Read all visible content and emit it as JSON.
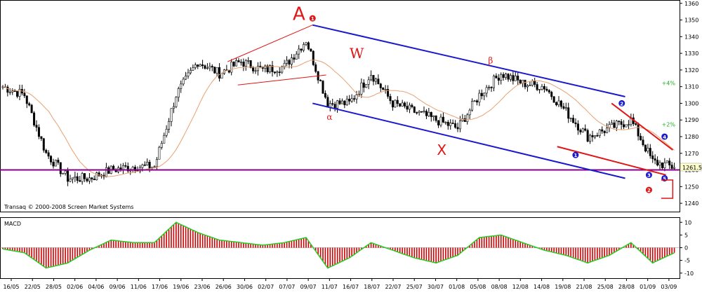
{
  "chart_data": [
    {
      "type": "line",
      "subtype": "candlestick-price",
      "ylim": [
        1235,
        1362
      ],
      "y_ticks": [
        1240,
        1250,
        1260,
        1270,
        1280,
        1290,
        1300,
        1310,
        1320,
        1330,
        1340,
        1350,
        1360
      ],
      "last_price_label": "1261.5",
      "support_level": 1260,
      "dates": [
        "16/05",
        "22/05",
        "28/05",
        "02/06",
        "04/06",
        "09/06",
        "11/06",
        "17/06",
        "19/06",
        "23/06",
        "26/06",
        "30/06",
        "02/07",
        "07/07",
        "09/07",
        "11/07",
        "16/07",
        "18/07",
        "22/07",
        "25/07",
        "30/07",
        "01/08",
        "05/08",
        "08/08",
        "12/08",
        "14/08",
        "19/08",
        "21/08",
        "25/08",
        "28/08",
        "01/09",
        "03/09"
      ],
      "close_approx": [
        1310,
        1305,
        1270,
        1255,
        1255,
        1260,
        1262,
        1262,
        1305,
        1325,
        1318,
        1325,
        1320,
        1322,
        1338,
        1300,
        1300,
        1318,
        1300,
        1295,
        1290,
        1285,
        1305,
        1318,
        1312,
        1310,
        1295,
        1280,
        1285,
        1290,
        1265,
        1261.5
      ],
      "percent_labels": [
        "+4%",
        "+2%"
      ],
      "wave_labels": [
        "A",
        "W",
        "X",
        "α",
        "β",
        "1",
        "2",
        "3",
        "4",
        "5",
        "2"
      ],
      "colors": {
        "channel": "#1a1acc",
        "support": "#8a008a",
        "annotation": "#e01515",
        "green": "#22aa22",
        "candle": "#000000",
        "ma": "#e8a070"
      }
    },
    {
      "type": "bar",
      "title": "MACD",
      "ylim": [
        -12,
        12
      ],
      "y_ticks": [
        10,
        5,
        0,
        -5,
        -10
      ],
      "values_approx": [
        -0.5,
        -2,
        -8,
        -6,
        -1,
        3,
        2,
        2,
        10,
        6,
        3,
        2,
        1,
        2,
        4,
        -8,
        -4,
        2,
        -1,
        -4,
        -6,
        -3,
        4,
        5,
        2,
        -1,
        -3,
        -6,
        -3,
        2,
        -6,
        -2
      ],
      "colors": {
        "positive": "#cc0000",
        "negative": "#cc0000",
        "edge": "#22cc22"
      }
    }
  ],
  "watermark": "Transaq © 2000-2008 Screen Market Systems"
}
